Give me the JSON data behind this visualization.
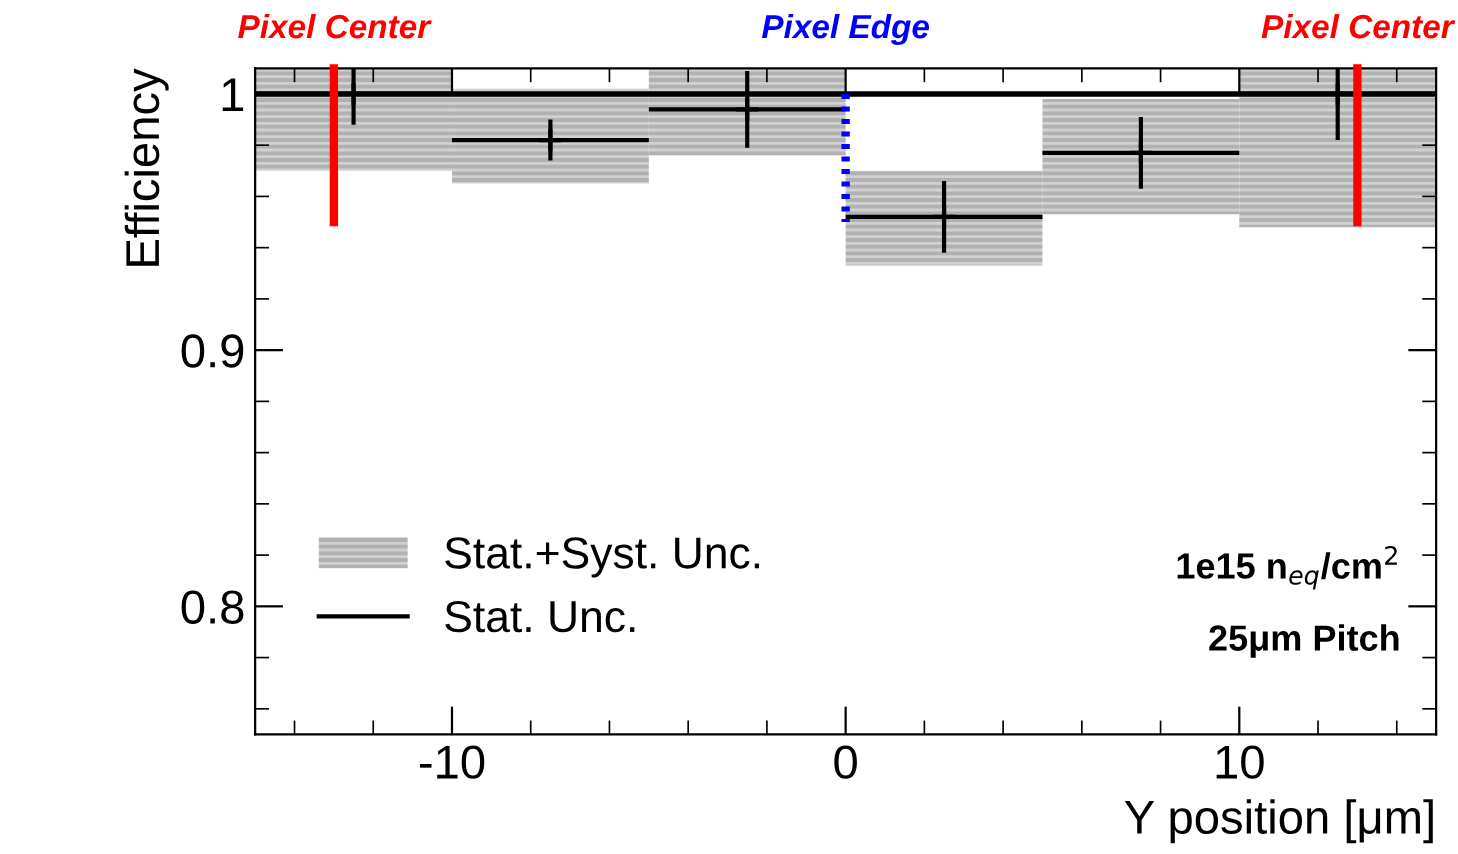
{
  "chart_data": {
    "type": "scatter",
    "xlabel": "Y position [μm]",
    "ylabel": "Efficiency",
    "xlim": [
      -15,
      15
    ],
    "xticks": [
      -10,
      0,
      10
    ],
    "ylim": [
      0.75,
      1.01
    ],
    "yticks": [
      0.8,
      0.9,
      1
    ],
    "grid": false,
    "legend": "bottom left",
    "series": [
      {
        "name": "Stat.+Syst. Unc.",
        "type": "bar",
        "color": "#a8a8a8",
        "x": [
          -12.5,
          -7.5,
          -2.5,
          2.5,
          7.5,
          12.5
        ],
        "base": [
          0.97,
          0.965,
          0.976,
          0.933,
          0.953,
          0.948
        ],
        "values": [
          0.04,
          0.037,
          0.034,
          0.037,
          0.045,
          0.062
        ]
      },
      {
        "name": "Stat. Unc.",
        "marker": "cross",
        "color": "#000000",
        "x": [
          -12.5,
          -7.5,
          -2.5,
          2.5,
          7.5,
          12.5
        ],
        "values": [
          1.0,
          0.982,
          0.994,
          0.952,
          0.977,
          1.0
        ],
        "errors": [
          0.012,
          0.008,
          0.015,
          0.014,
          0.014,
          0.018
        ],
        "xerrors": [
          2.5,
          2.5,
          2.5,
          2.5,
          2.5,
          2.5
        ]
      },
      {
        "name": "Pixel Center",
        "type": "line",
        "color": "#ff0000",
        "line_style": "solid",
        "x": [
          -13,
          -13
        ],
        "values": [
          1.01,
          0.95
        ]
      },
      {
        "name": "Pixel Edge",
        "type": "line",
        "color": "#0000ff",
        "line_style": "dotted",
        "x": [
          0,
          0
        ],
        "values": [
          1.0,
          0.95
        ]
      },
      {
        "name": "Pixel Center",
        "type": "line",
        "color": "#ff0000",
        "line_style": "solid",
        "x": [
          13,
          13
        ],
        "values": [
          1.01,
          0.95
        ]
      }
    ],
    "ref_lines": [
      {
        "axis": "y",
        "value": 1,
        "color": "#000000"
      }
    ],
    "annotations": [
      "1e15 n$_{eq}$/cm$^{2}$",
      "25μm Pitch"
    ]
  }
}
